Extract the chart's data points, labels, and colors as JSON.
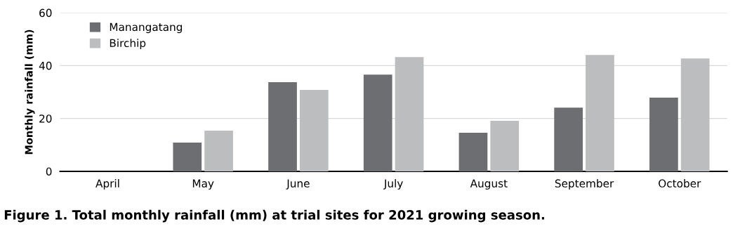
{
  "chart_data": {
    "type": "bar",
    "title": "Figure 1. Total monthly rainfall (mm) at trial sites for 2021 growing season.",
    "ylabel": "Monthly rainfall (mm)",
    "categories": [
      "April",
      "May",
      "June",
      "July",
      "August",
      "September",
      "October"
    ],
    "series": [
      {
        "name": "Manangatang",
        "color": "#6d6e71",
        "values": [
          0,
          10.9,
          33.7,
          36.6,
          14.6,
          24.1,
          27.9
        ]
      },
      {
        "name": "Birchip",
        "color": "#bcbdbf",
        "values": [
          0,
          15.4,
          30.8,
          43.2,
          19.1,
          44.0,
          42.7
        ]
      }
    ],
    "ylim": [
      0,
      60
    ],
    "yticks": [
      0,
      20,
      40,
      60
    ],
    "grid": "y",
    "legend": "top left"
  }
}
